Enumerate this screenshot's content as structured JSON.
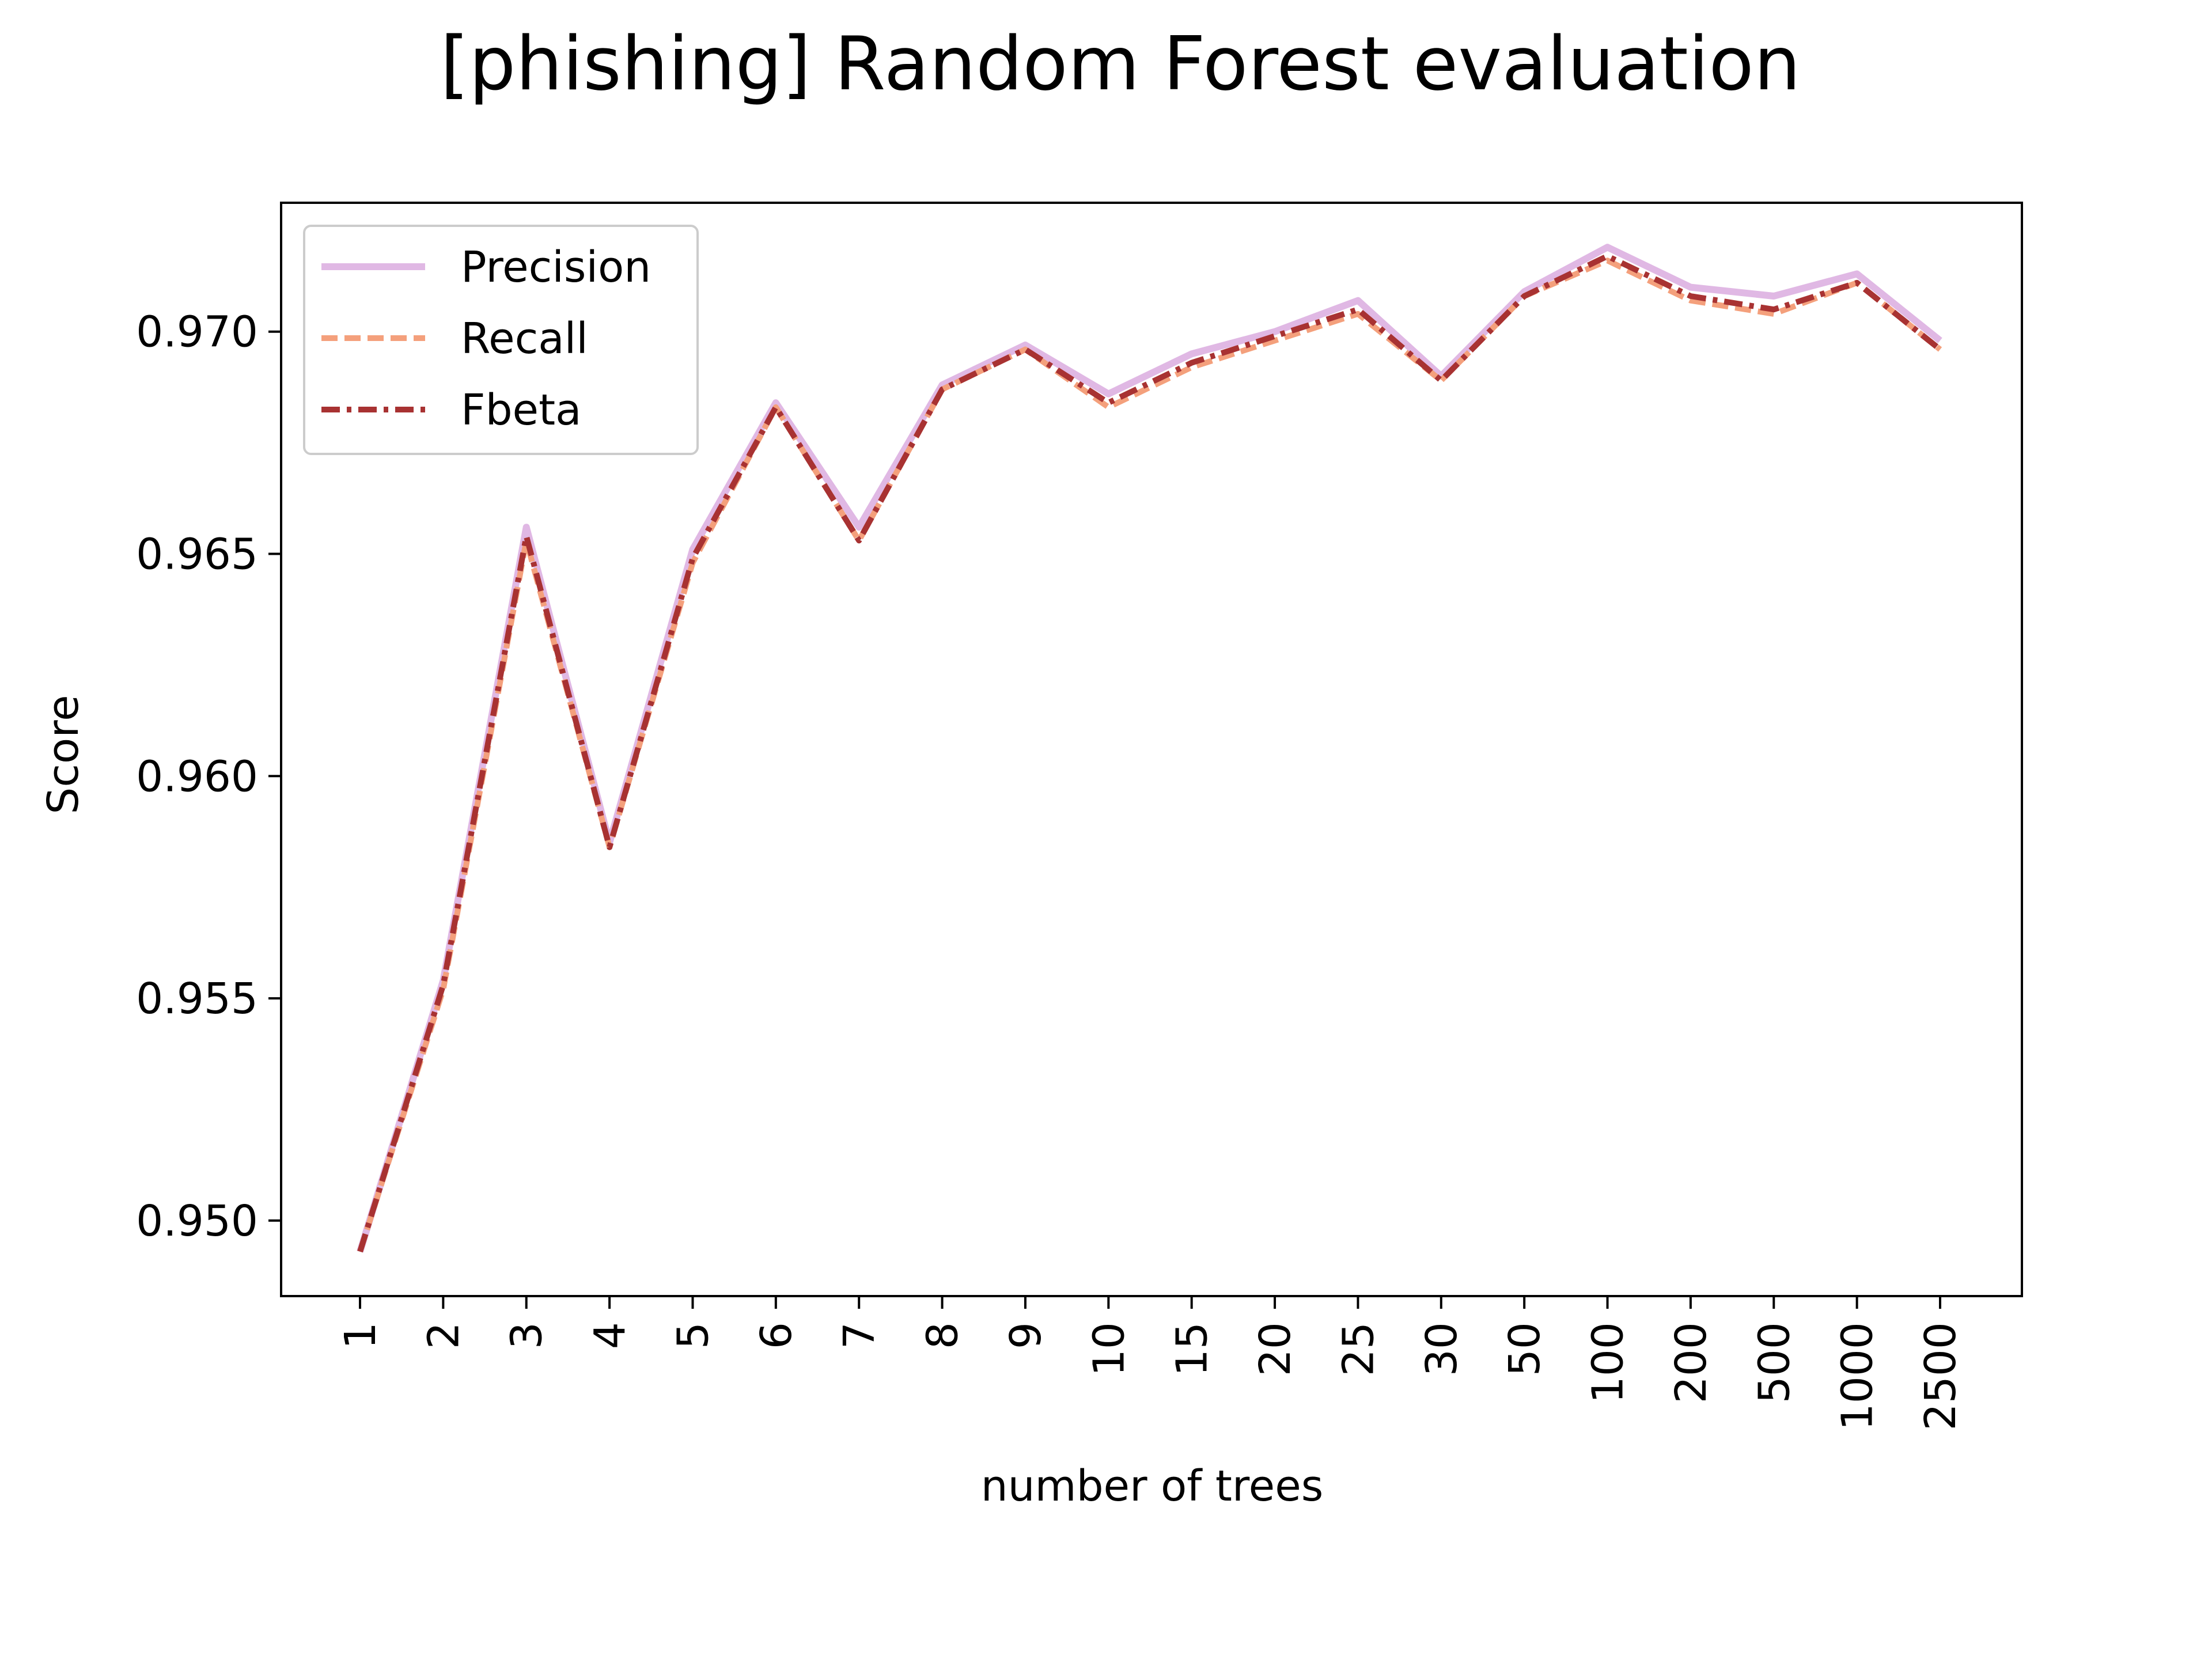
{
  "chart_data": {
    "type": "line",
    "title": "[phishing] Random Forest evaluation",
    "xlabel": "number of trees",
    "ylabel": "Score",
    "categories": [
      "1",
      "2",
      "3",
      "4",
      "5",
      "6",
      "7",
      "8",
      "9",
      "10",
      "15",
      "20",
      "25",
      "30",
      "50",
      "100",
      "200",
      "500",
      "1000",
      "2500"
    ],
    "ylim": [
      0.9483,
      0.9729
    ],
    "yticks": [
      "0.950",
      "0.955",
      "0.960",
      "0.965",
      "0.970"
    ],
    "grid": false,
    "legend_position": "upper-left",
    "series": [
      {
        "name": "Precision",
        "style": "solid",
        "color": "#e0b8e4",
        "values": [
          0.9493,
          0.9554,
          0.9656,
          0.9585,
          0.9651,
          0.9684,
          0.9656,
          0.9688,
          0.9697,
          0.9686,
          0.9695,
          0.97,
          0.9707,
          0.969,
          0.9709,
          0.9719,
          0.971,
          0.9708,
          0.9713,
          0.9698
        ]
      },
      {
        "name": "Recall",
        "style": "dashed",
        "color": "#f4a07c",
        "values": [
          0.9493,
          0.9552,
          0.9653,
          0.9584,
          0.9648,
          0.9683,
          0.9653,
          0.9687,
          0.9696,
          0.9683,
          0.9692,
          0.9698,
          0.9704,
          0.9689,
          0.9708,
          0.9716,
          0.9707,
          0.9704,
          0.9711,
          0.9696
        ]
      },
      {
        "name": "Fbeta",
        "style": "dashdot",
        "color": "#a83232",
        "values": [
          0.9493,
          0.9553,
          0.9654,
          0.9584,
          0.9649,
          0.9683,
          0.9653,
          0.9687,
          0.9696,
          0.9684,
          0.9693,
          0.9699,
          0.9705,
          0.9689,
          0.9708,
          0.9717,
          0.9708,
          0.9705,
          0.9711,
          0.9696
        ]
      }
    ]
  }
}
